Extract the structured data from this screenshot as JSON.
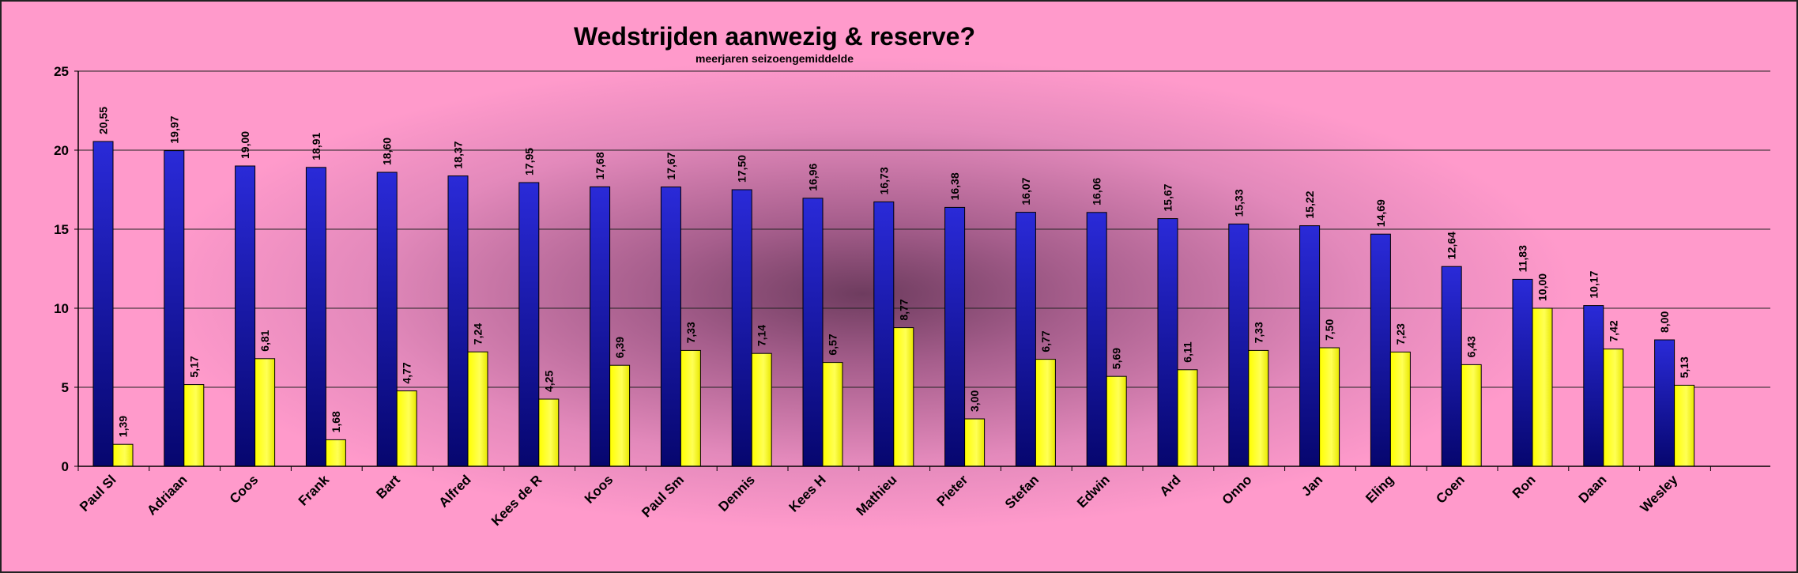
{
  "chart_data": {
    "type": "bar",
    "title": "Wedstrijden aanwezig & reserve?",
    "subtitle": "meerjaren seizoengemiddelde",
    "xlabel": "",
    "ylabel": "",
    "ylim": [
      0,
      25
    ],
    "yticks": [
      0,
      5,
      10,
      15,
      20,
      25
    ],
    "grid": true,
    "categories": [
      "Paul Sl",
      "Adriaan",
      "Coos",
      "Frank",
      "Bart",
      "Alfred",
      "Kees de R",
      "Koos",
      "Paul Sm",
      "Dennis",
      "Kees H",
      "Mathieu",
      "Pieter",
      "Stefan",
      "Edwin",
      "Ard",
      "Onno",
      "Jan",
      "Eling",
      "Coen",
      "Ron",
      "Daan",
      "Wesley"
    ],
    "series": [
      {
        "color": "#0a0a9c",
        "values": [
          20.55,
          19.97,
          19.0,
          18.91,
          18.6,
          18.37,
          17.95,
          17.68,
          17.67,
          17.5,
          16.96,
          16.73,
          16.38,
          16.07,
          16.06,
          15.67,
          15.33,
          15.22,
          14.69,
          12.64,
          11.83,
          10.17,
          8.0
        ],
        "labels": [
          "20,55",
          "19,97",
          "19,00",
          "18,91",
          "18,60",
          "18,37",
          "17,95",
          "17,68",
          "17,67",
          "17,50",
          "16,96",
          "16,73",
          "16,38",
          "16,07",
          "16,06",
          "15,67",
          "15,33",
          "15,22",
          "14,69",
          "12,64",
          "11,83",
          "10,17",
          "8,00"
        ]
      },
      {
        "color": "#ffff1a",
        "values": [
          1.39,
          5.17,
          6.81,
          1.68,
          4.77,
          7.24,
          4.25,
          6.39,
          7.33,
          7.14,
          6.57,
          8.77,
          3.0,
          6.77,
          5.69,
          6.11,
          7.33,
          7.5,
          7.23,
          6.43,
          10.0,
          7.42,
          5.13
        ],
        "labels": [
          "1,39",
          "5,17",
          "6,81",
          "1,68",
          "4,77",
          "7,24",
          "4,25",
          "6,39",
          "7,33",
          "7,14",
          "6,57",
          "8,77",
          "3,00",
          "6,77",
          "5,69",
          "6,11",
          "7,33",
          "7,50",
          "7,23",
          "6,43",
          "10,00",
          "7,42",
          "5,13"
        ]
      }
    ]
  }
}
